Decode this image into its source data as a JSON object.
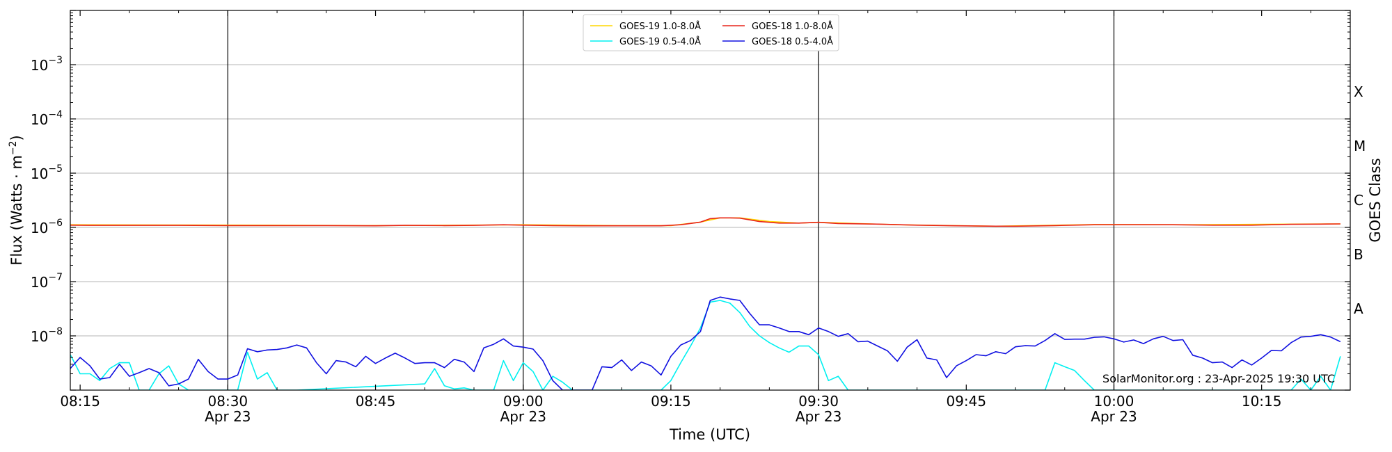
{
  "chart_data": {
    "type": "line",
    "ylabel": "Flux (Watts · m⁻²)",
    "ylabel_base": "Flux (Watts · m",
    "ylabel_sup": "−2",
    "ylabel_close": ")",
    "xlabel": "Time (UTC)",
    "right_label": "GOES Class",
    "watermark": "SolarMonitor.org : 23-Apr-2025 19:30 UTC",
    "y_scale": "log",
    "ylim": [
      1e-09,
      0.01
    ],
    "xlim": [
      "08:14",
      "10:24"
    ],
    "grid": "horizontal",
    "legend_position": "top-center",
    "x_ticks": [
      {
        "time": "08:15",
        "label": "08:15",
        "date": ""
      },
      {
        "time": "08:30",
        "label": "08:30",
        "date": "Apr 23"
      },
      {
        "time": "08:45",
        "label": "08:45",
        "date": ""
      },
      {
        "time": "09:00",
        "label": "09:00",
        "date": "Apr 23"
      },
      {
        "time": "09:15",
        "label": "09:15",
        "date": ""
      },
      {
        "time": "09:30",
        "label": "09:30",
        "date": "Apr 23"
      },
      {
        "time": "09:45",
        "label": "09:45",
        "date": ""
      },
      {
        "time": "10:00",
        "label": "10:00",
        "date": "Apr 23"
      },
      {
        "time": "10:15",
        "label": "10:15",
        "date": ""
      }
    ],
    "vertical_lines": [
      "08:30",
      "09:00",
      "09:30",
      "10:00"
    ],
    "y_ticks": [
      {
        "exp": -8,
        "label_base": "10",
        "label_exp": "−8"
      },
      {
        "exp": -7,
        "label_base": "10",
        "label_exp": "−7"
      },
      {
        "exp": -6,
        "label_base": "10",
        "label_exp": "−6"
      },
      {
        "exp": -5,
        "label_base": "10",
        "label_exp": "−5"
      },
      {
        "exp": -4,
        "label_base": "10",
        "label_exp": "−4"
      },
      {
        "exp": -3,
        "label_base": "10",
        "label_exp": "−3"
      }
    ],
    "goes_classes": [
      {
        "label": "A",
        "exp": -7.5
      },
      {
        "label": "B",
        "exp": -6.5
      },
      {
        "label": "C",
        "exp": -5.5
      },
      {
        "label": "M",
        "exp": -4.5
      },
      {
        "label": "X",
        "exp": -3.5
      }
    ],
    "series": [
      {
        "name": "GOES-19 1.0-8.0Å",
        "color": "#ffd700",
        "x": [
          "08:14",
          "08:24",
          "08:34",
          "08:44",
          "08:54",
          "09:00",
          "09:10",
          "09:15",
          "09:18",
          "09:20",
          "09:22",
          "09:25",
          "09:28",
          "09:30",
          "09:38",
          "09:48",
          "09:58",
          "10:08",
          "10:18",
          "10:23"
        ],
        "values": [
          1.12e-06,
          1.11e-06,
          1.1e-06,
          1.08e-06,
          1.1e-06,
          1.12e-06,
          1.08e-06,
          1.08e-06,
          1.25e-06,
          1.5e-06,
          1.5e-06,
          1.28e-06,
          1.2e-06,
          1.24e-06,
          1.12e-06,
          1.05e-06,
          1.13e-06,
          1.12e-06,
          1.15e-06,
          1.16e-06
        ]
      },
      {
        "name": "GOES-18 1.0-8.0Å",
        "color": "#e8251b",
        "x": [
          "08:14",
          "08:16",
          "08:20",
          "08:25",
          "08:30",
          "08:35",
          "08:40",
          "08:45",
          "08:48",
          "08:52",
          "08:55",
          "08:58",
          "09:00",
          "09:03",
          "09:06",
          "09:10",
          "09:14",
          "09:16",
          "09:18",
          "09:19",
          "09:20",
          "09:21",
          "09:22",
          "09:24",
          "09:26",
          "09:28",
          "09:30",
          "09:32",
          "09:36",
          "09:40",
          "09:44",
          "09:48",
          "09:50",
          "09:54",
          "09:58",
          "10:02",
          "10:06",
          "10:10",
          "10:14",
          "10:18",
          "10:21",
          "10:23"
        ],
        "values": [
          1.1e-06,
          1.09e-06,
          1.09e-06,
          1.09e-06,
          1.08e-06,
          1.08e-06,
          1.08e-06,
          1.07e-06,
          1.09e-06,
          1.08e-06,
          1.09e-06,
          1.12e-06,
          1.1e-06,
          1.08e-06,
          1.07e-06,
          1.07e-06,
          1.07e-06,
          1.12e-06,
          1.25e-06,
          1.45e-06,
          1.5e-06,
          1.5e-06,
          1.48e-06,
          1.28e-06,
          1.2e-06,
          1.2e-06,
          1.24e-06,
          1.18e-06,
          1.15e-06,
          1.1e-06,
          1.07e-06,
          1.05e-06,
          1.05e-06,
          1.08e-06,
          1.12e-06,
          1.12e-06,
          1.12e-06,
          1.1e-06,
          1.1e-06,
          1.14e-06,
          1.15e-06,
          1.16e-06
        ]
      },
      {
        "name": "GOES-19 0.5-4.0Å",
        "color": "#00f0f0",
        "x": [
          "08:14",
          "08:15",
          "08:16",
          "08:17",
          "08:18",
          "08:19",
          "08:20",
          "08:21",
          "08:22",
          "08:23",
          "08:24",
          "08:25",
          "08:26",
          "08:27",
          "08:28",
          "08:30",
          "08:31",
          "08:32",
          "08:33",
          "08:34",
          "08:35",
          "08:36",
          "08:37",
          "08:50",
          "08:51",
          "08:52",
          "08:53",
          "08:54",
          "08:55",
          "08:56",
          "08:57",
          "08:58",
          "08:59",
          "09:00",
          "09:01",
          "09:02",
          "09:03",
          "09:04",
          "09:05",
          "09:13",
          "09:14",
          "09:15",
          "09:16",
          "09:17",
          "09:18",
          "09:19",
          "09:20",
          "09:21",
          "09:22",
          "09:23",
          "09:24",
          "09:25",
          "09:26",
          "09:27",
          "09:28",
          "09:29",
          "09:30",
          "09:31",
          "09:32",
          "09:33",
          "09:34",
          "09:35",
          "09:36",
          "09:53",
          "09:54",
          "09:55",
          "09:56",
          "09:57",
          "09:58",
          "10:18",
          "10:19",
          "10:20",
          "10:21",
          "10:22",
          "10:23"
        ],
        "values": [
          4.5e-09,
          2e-09,
          2e-09,
          1.5e-09,
          2.5e-09,
          3.2e-09,
          3.2e-09,
          1e-09,
          1e-09,
          2e-09,
          2.8e-09,
          1.3e-09,
          1e-09,
          1e-09,
          1e-09,
          1e-09,
          1e-09,
          5e-09,
          1.6e-09,
          2.1e-09,
          1e-09,
          1e-09,
          1e-09,
          1.3e-09,
          2.5e-09,
          1.2e-09,
          1.05e-09,
          1.1e-09,
          1e-09,
          1e-09,
          1e-09,
          3.5e-09,
          1.5e-09,
          3.2e-09,
          2.2e-09,
          1e-09,
          1.8e-09,
          1.4e-09,
          1e-09,
          1e-09,
          1e-09,
          1.5e-09,
          3.2e-09,
          6.5e-09,
          1.4e-08,
          4.2e-08,
          4.5e-08,
          4e-08,
          2.7e-08,
          1.5e-08,
          1e-08,
          7.5e-09,
          6e-09,
          5e-09,
          6.5e-09,
          6.5e-09,
          4.5e-09,
          1.5e-09,
          1.8e-09,
          1e-09,
          1e-09,
          1e-09,
          1e-09,
          1e-09,
          3.2e-09,
          2.7e-09,
          2.3e-09,
          1.5e-09,
          1e-09,
          1e-09,
          1.6e-09,
          1e-09,
          1.8e-09,
          1e-09,
          4.2e-09
        ]
      },
      {
        "name": "GOES-18 0.5-4.0Å",
        "color": "#1010e0",
        "x": [
          "08:14",
          "08:15",
          "08:16",
          "08:17",
          "08:18",
          "08:19",
          "08:20",
          "08:21",
          "08:22",
          "08:23",
          "08:24",
          "08:25",
          "08:26",
          "08:27",
          "08:28",
          "08:29",
          "08:30",
          "08:31",
          "08:32",
          "08:33",
          "08:34",
          "08:35",
          "08:36",
          "08:37",
          "08:38",
          "08:39",
          "08:40",
          "08:41",
          "08:42",
          "08:43",
          "08:44",
          "08:45",
          "08:46",
          "08:47",
          "08:48",
          "08:49",
          "08:50",
          "08:51",
          "08:52",
          "08:53",
          "08:54",
          "08:55",
          "08:56",
          "08:57",
          "08:58",
          "08:59",
          "09:00",
          "09:01",
          "09:02",
          "09:03",
          "09:04",
          "09:05",
          "09:06",
          "09:07",
          "09:08",
          "09:09",
          "09:10",
          "09:11",
          "09:12",
          "09:13",
          "09:14",
          "09:15",
          "09:16",
          "09:17",
          "09:18",
          "09:19",
          "09:20",
          "09:21",
          "09:22",
          "09:23",
          "09:24",
          "09:25",
          "09:26",
          "09:27",
          "09:28",
          "09:29",
          "09:30",
          "09:31",
          "09:32",
          "09:33",
          "09:34",
          "09:35",
          "09:36",
          "09:37",
          "09:38",
          "09:39",
          "09:40",
          "09:41",
          "09:42",
          "09:43",
          "09:44",
          "09:45",
          "09:46",
          "09:47",
          "09:48",
          "09:49",
          "09:50",
          "09:51",
          "09:52",
          "09:53",
          "09:54",
          "09:55",
          "09:56",
          "09:57",
          "09:58",
          "09:59",
          "10:00",
          "10:01",
          "10:02",
          "10:03",
          "10:04",
          "10:05",
          "10:06",
          "10:07",
          "10:08",
          "10:09",
          "10:10",
          "10:11",
          "10:12",
          "10:13",
          "10:14",
          "10:15",
          "10:16",
          "10:17",
          "10:18",
          "10:19",
          "10:20",
          "10:21",
          "10:22",
          "10:23"
        ],
        "values": [
          2.5e-09,
          4e-09,
          2.8e-09,
          1.6e-09,
          1.7e-09,
          3e-09,
          1.8e-09,
          2.1e-09,
          2.5e-09,
          2.1e-09,
          1.2e-09,
          1.3e-09,
          1.6e-09,
          3.7e-09,
          2.2e-09,
          1.6e-09,
          1.6e-09,
          1.9e-09,
          5.8e-09,
          5.1e-09,
          5.5e-09,
          5.6e-09,
          6e-09,
          6.8e-09,
          6e-09,
          3.2e-09,
          2e-09,
          3.5e-09,
          3.3e-09,
          2.7e-09,
          4.2e-09,
          3.1e-09,
          3.9e-09,
          4.8e-09,
          3.9e-09,
          3.1e-09,
          3.2e-09,
          3.2e-09,
          2.6e-09,
          3.7e-09,
          3.3e-09,
          2.2e-09,
          6e-09,
          7e-09,
          8.8e-09,
          6.5e-09,
          6.2e-09,
          5.7e-09,
          3.5e-09,
          1.5e-09,
          1e-09,
          1e-09,
          1e-09,
          1e-09,
          2.7e-09,
          2.6e-09,
          3.6e-09,
          2.3e-09,
          3.3e-09,
          2.8e-09,
          1.9e-09,
          4.2e-09,
          6.8e-09,
          8.2e-09,
          1.2e-08,
          4.5e-08,
          5.2e-08,
          4.8e-08,
          4.5e-08,
          2.6e-08,
          1.6e-08,
          1.6e-08,
          1.4e-08,
          1.2e-08,
          1.2e-08,
          1.05e-08,
          1.4e-08,
          1.2e-08,
          9.8e-09,
          1.1e-08,
          7.8e-09,
          8e-09,
          6.5e-09,
          5.3e-09,
          3.4e-09,
          6.2e-09,
          8.5e-09,
          3.9e-09,
          3.6e-09,
          1.7e-09,
          2.8e-09,
          3.5e-09,
          4.5e-09,
          4.3e-09,
          5.1e-09,
          4.7e-09,
          6.3e-09,
          6.6e-09,
          6.5e-09,
          8.2e-09,
          1.1e-08,
          8.6e-09,
          8.7e-09,
          8.7e-09,
          9.4e-09,
          9.6e-09,
          8.8e-09,
          7.7e-09,
          8.4e-09,
          7.2e-09,
          8.8e-09,
          9.8e-09,
          8.2e-09,
          8.5e-09,
          4.4e-09,
          3.9e-09,
          3.2e-09,
          3.3e-09,
          2.6e-09,
          3.6e-09,
          2.9e-09,
          3.9e-09,
          5.4e-09,
          5.3e-09,
          7.5e-09,
          9.5e-09,
          9.8e-09,
          1.05e-08,
          9.5e-09,
          7.8e-09
        ]
      }
    ],
    "legend": [
      {
        "label": "GOES-19 1.0-8.0Å",
        "color": "#ffd700"
      },
      {
        "label": "GOES-19 0.5-4.0Å",
        "color": "#00f0f0"
      },
      {
        "label": "GOES-18 1.0-8.0Å",
        "color": "#e8251b"
      },
      {
        "label": "GOES-18 0.5-4.0Å",
        "color": "#1010e0"
      }
    ]
  }
}
